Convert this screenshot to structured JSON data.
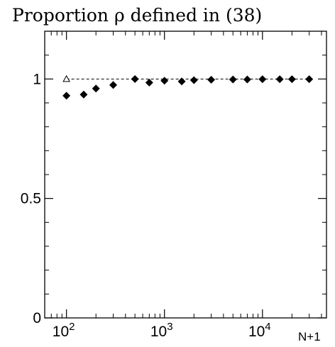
{
  "chart_data": {
    "type": "scatter",
    "title": "Proportion ρ defined in (38)",
    "xlabel": "N+1",
    "ylabel": "",
    "x_scale": "log",
    "xlim": [
      60,
      45000
    ],
    "ylim": [
      0,
      1.2
    ],
    "x_ticks": [
      {
        "value": 100,
        "base": "10",
        "exp": "2"
      },
      {
        "value": 1000,
        "base": "10",
        "exp": "3"
      },
      {
        "value": 10000,
        "base": "10",
        "exp": "4"
      }
    ],
    "y_ticks": [
      {
        "value": 0,
        "label": "0"
      },
      {
        "value": 0.5,
        "label": "0.5"
      },
      {
        "value": 1,
        "label": "1"
      }
    ],
    "reference_line": {
      "y": 1,
      "style": "dashed"
    },
    "series": [
      {
        "marker": "diamond-filled",
        "color": "#000000",
        "points": [
          {
            "x": 100,
            "y": 0.93
          },
          {
            "x": 150,
            "y": 0.935
          },
          {
            "x": 200,
            "y": 0.96
          },
          {
            "x": 300,
            "y": 0.975
          },
          {
            "x": 500,
            "y": 1.0
          },
          {
            "x": 700,
            "y": 0.985
          },
          {
            "x": 1000,
            "y": 0.993
          },
          {
            "x": 1500,
            "y": 0.99
          },
          {
            "x": 2000,
            "y": 0.995
          },
          {
            "x": 3000,
            "y": 0.997
          },
          {
            "x": 5000,
            "y": 0.998
          },
          {
            "x": 7000,
            "y": 0.998
          },
          {
            "x": 10000,
            "y": 0.999
          },
          {
            "x": 15000,
            "y": 0.999
          },
          {
            "x": 20000,
            "y": 0.999
          },
          {
            "x": 30000,
            "y": 0.999
          }
        ]
      },
      {
        "marker": "triangle-open",
        "color": "#000000",
        "points": [
          {
            "x": 100,
            "y": 1.0
          }
        ]
      }
    ]
  }
}
